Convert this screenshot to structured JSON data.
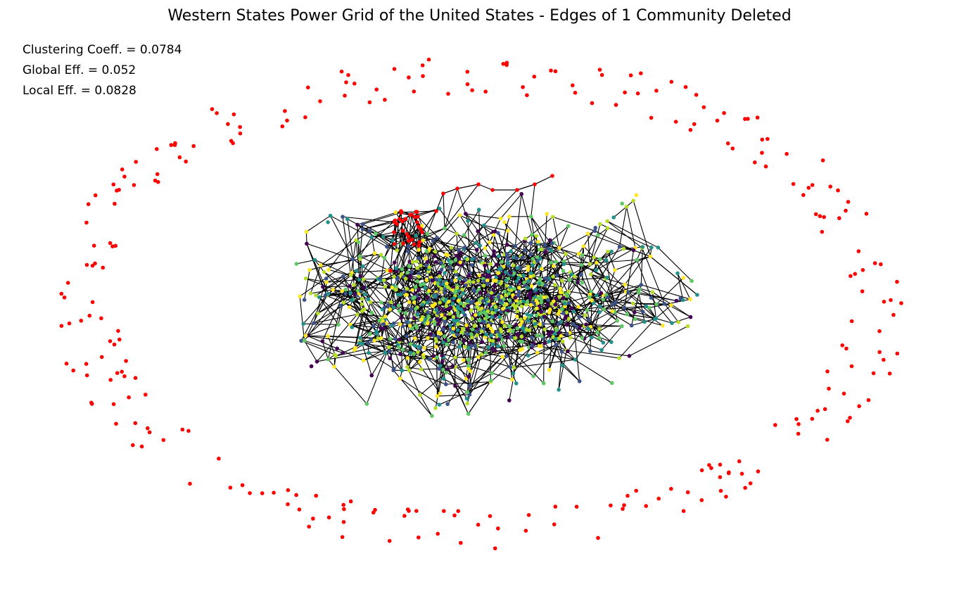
{
  "figure": {
    "title": "Western States Power Grid of the United States - Edges of 1 Community Deleted"
  },
  "metrics": [
    {
      "label": "Clustering Coeff. = 0.0784"
    },
    {
      "label": "Global Eff. = 0.052"
    },
    {
      "label": "Local Eff. = 0.0828"
    }
  ],
  "colors": {
    "background": "#ffffff",
    "edge": "#000000",
    "deleted_community_nodes": "#ff0000",
    "community_palette": [
      "#440154",
      "#3b528b",
      "#21918c",
      "#5ec962",
      "#b5de2b",
      "#fde725"
    ]
  }
}
